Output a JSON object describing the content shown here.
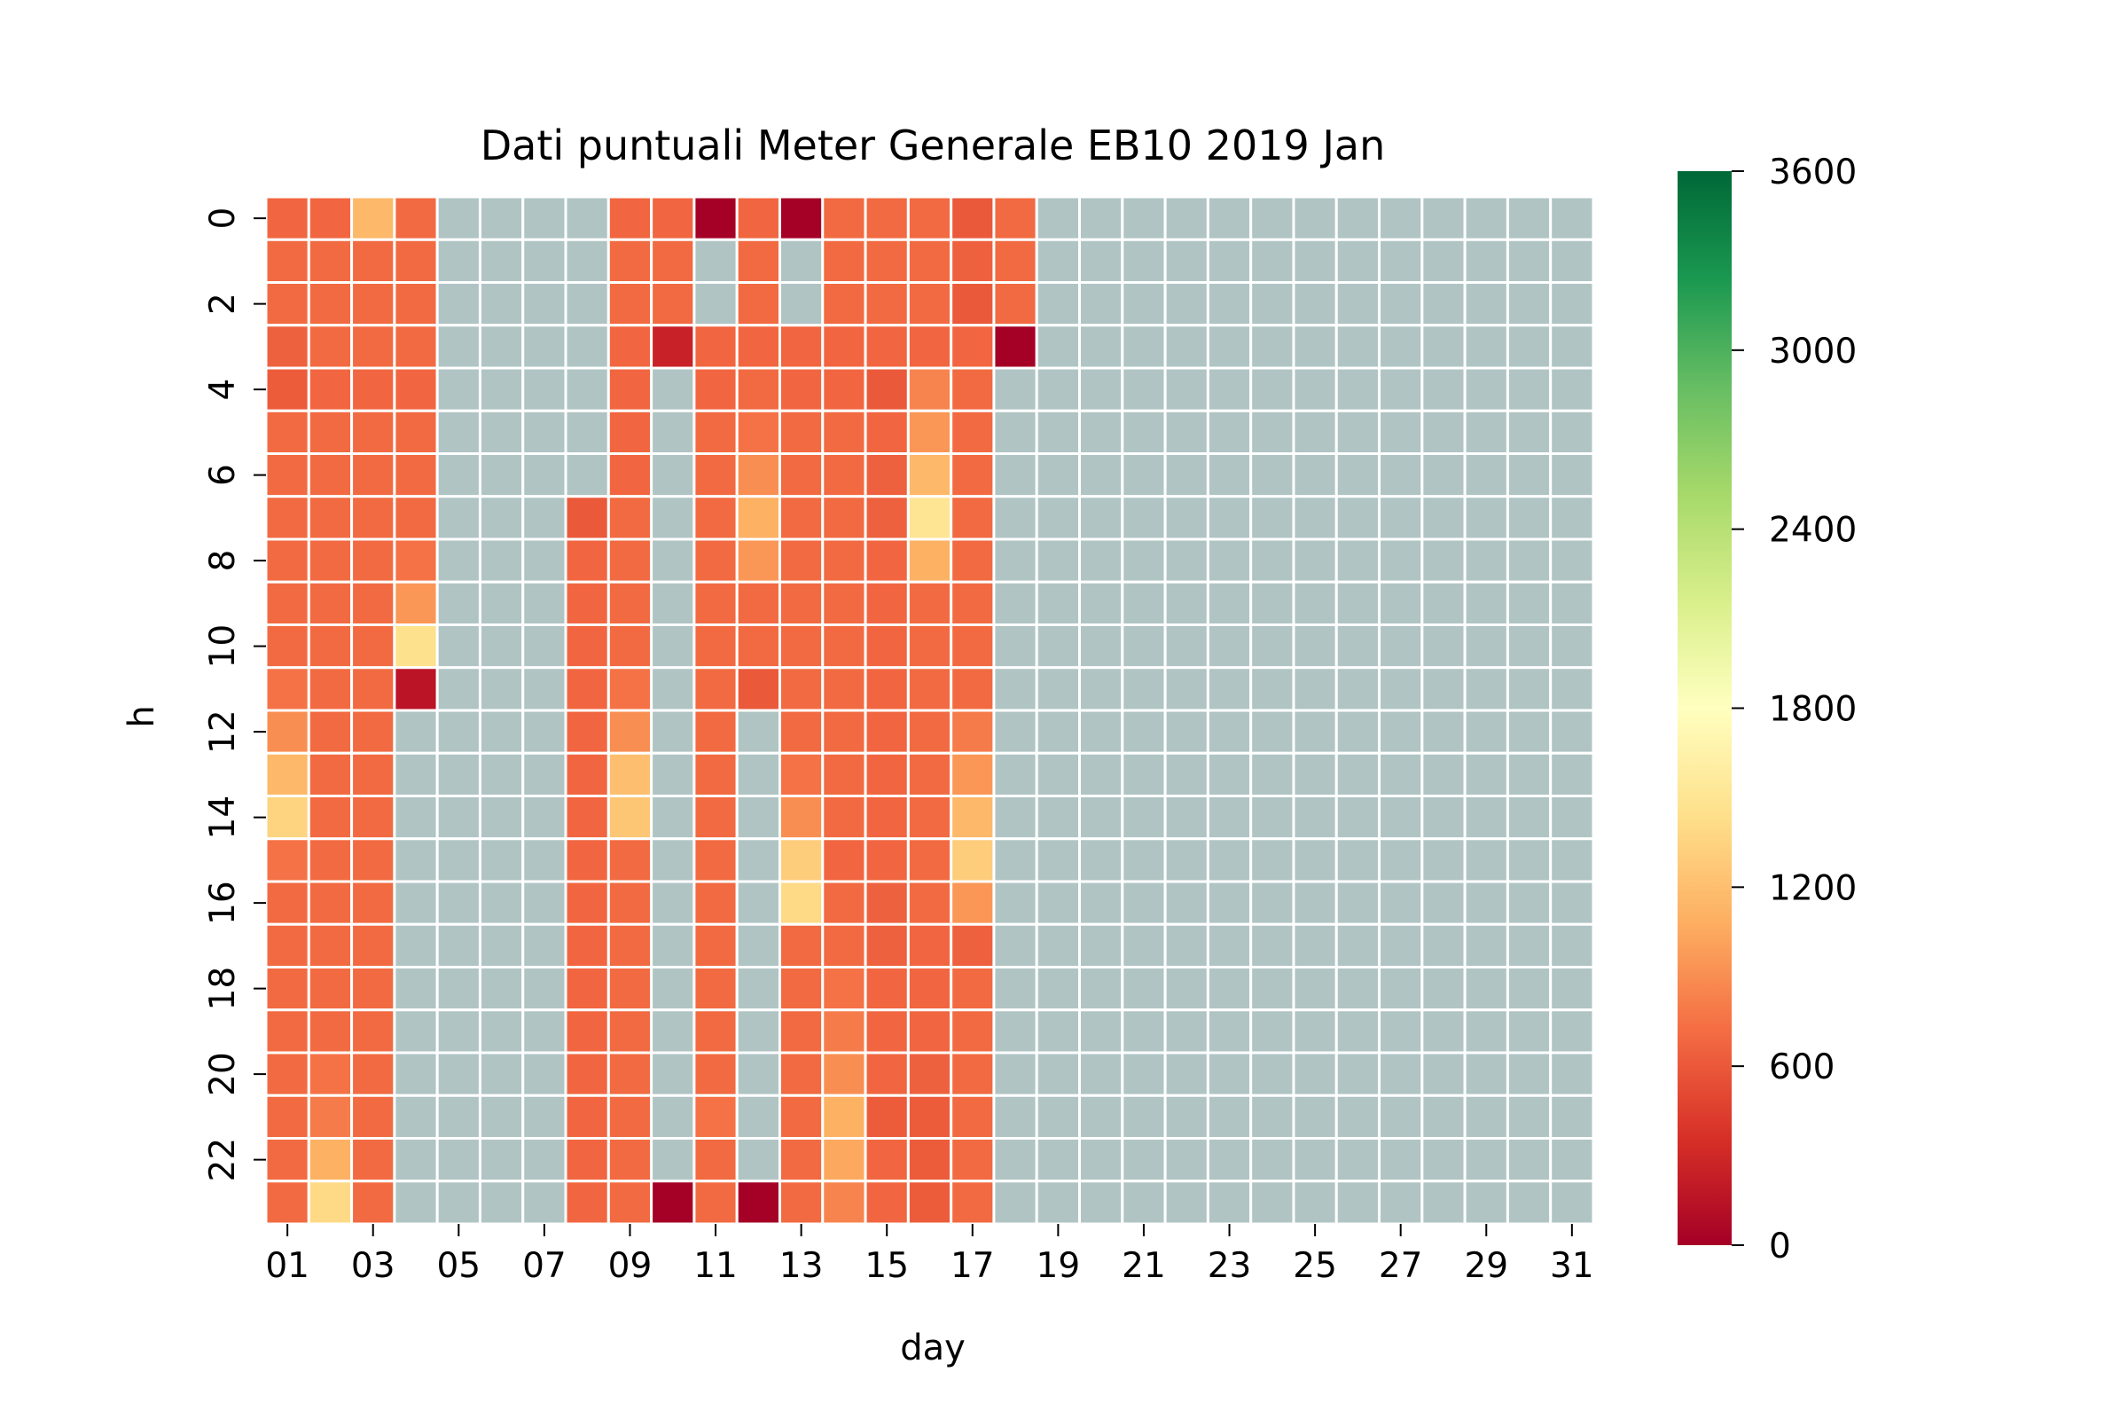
{
  "chart_data": {
    "type": "heatmap",
    "title": "Dati puntuali Meter Generale EB10 2019 Jan",
    "xlabel": "day",
    "ylabel": "h",
    "x_tick_labels": [
      "01",
      "03",
      "05",
      "07",
      "09",
      "11",
      "13",
      "15",
      "17",
      "19",
      "21",
      "23",
      "25",
      "27",
      "29",
      "31"
    ],
    "y_tick_labels": [
      "0",
      "2",
      "4",
      "6",
      "8",
      "10",
      "12",
      "14",
      "16",
      "18",
      "20",
      "22"
    ],
    "colorbar": {
      "cmap": "RdYlGn",
      "vmin": 0,
      "vmax": 3600,
      "ticks": [
        "0",
        "600",
        "1200",
        "1800",
        "2400",
        "3000",
        "3600"
      ]
    },
    "missing_color": "#b0c4c4",
    "days": [
      "01",
      "02",
      "03",
      "04",
      "05",
      "06",
      "07",
      "08",
      "09",
      "10",
      "11",
      "12",
      "13",
      "14",
      "15",
      "16",
      "17",
      "18",
      "19",
      "20",
      "21",
      "22",
      "23",
      "24",
      "25",
      "26",
      "27",
      "28",
      "29",
      "30",
      "31"
    ],
    "hours": [
      "0",
      "1",
      "2",
      "3",
      "4",
      "5",
      "6",
      "7",
      "8",
      "9",
      "10",
      "11",
      "12",
      "13",
      "14",
      "15",
      "16",
      "17",
      "18",
      "19",
      "20",
      "21",
      "22",
      "23"
    ],
    "values": [
      [
        680,
        680,
        1150,
        700,
        null,
        null,
        null,
        null,
        680,
        680,
        0,
        680,
        0,
        700,
        700,
        700,
        600,
        700,
        null,
        null,
        null,
        null,
        null,
        null,
        null,
        null,
        null,
        null,
        null,
        null,
        null
      ],
      [
        700,
        700,
        700,
        700,
        null,
        null,
        null,
        null,
        700,
        700,
        null,
        700,
        null,
        700,
        700,
        700,
        650,
        700,
        null,
        null,
        null,
        null,
        null,
        null,
        null,
        null,
        null,
        null,
        null,
        null,
        null
      ],
      [
        700,
        700,
        700,
        700,
        null,
        null,
        null,
        null,
        700,
        700,
        null,
        700,
        null,
        700,
        700,
        700,
        600,
        700,
        null,
        null,
        null,
        null,
        null,
        null,
        null,
        null,
        null,
        null,
        null,
        null,
        null
      ],
      [
        650,
        700,
        700,
        700,
        null,
        null,
        null,
        null,
        680,
        250,
        680,
        680,
        680,
        680,
        680,
        680,
        680,
        0,
        null,
        null,
        null,
        null,
        null,
        null,
        null,
        null,
        null,
        null,
        null,
        null,
        null
      ],
      [
        620,
        680,
        680,
        680,
        null,
        null,
        null,
        null,
        680,
        null,
        680,
        700,
        680,
        680,
        600,
        850,
        700,
        null,
        null,
        null,
        null,
        null,
        null,
        null,
        null,
        null,
        null,
        null,
        null,
        null,
        null
      ],
      [
        700,
        700,
        700,
        700,
        null,
        null,
        null,
        null,
        680,
        null,
        700,
        750,
        700,
        700,
        680,
        950,
        700,
        null,
        null,
        null,
        null,
        null,
        null,
        null,
        null,
        null,
        null,
        null,
        null,
        null,
        null
      ],
      [
        700,
        700,
        700,
        700,
        null,
        null,
        null,
        null,
        680,
        null,
        700,
        900,
        700,
        700,
        650,
        1150,
        700,
        null,
        null,
        null,
        null,
        null,
        null,
        null,
        null,
        null,
        null,
        null,
        null,
        null,
        null
      ],
      [
        700,
        700,
        700,
        700,
        null,
        null,
        null,
        600,
        700,
        null,
        700,
        1100,
        700,
        700,
        650,
        1500,
        700,
        null,
        null,
        null,
        null,
        null,
        null,
        null,
        null,
        null,
        null,
        null,
        null,
        null,
        null
      ],
      [
        700,
        700,
        700,
        750,
        null,
        null,
        null,
        680,
        700,
        null,
        700,
        950,
        700,
        700,
        680,
        1100,
        700,
        null,
        null,
        null,
        null,
        null,
        null,
        null,
        null,
        null,
        null,
        null,
        null,
        null,
        null
      ],
      [
        700,
        700,
        700,
        950,
        null,
        null,
        null,
        680,
        700,
        null,
        700,
        700,
        700,
        700,
        680,
        700,
        700,
        null,
        null,
        null,
        null,
        null,
        null,
        null,
        null,
        null,
        null,
        null,
        null,
        null,
        null
      ],
      [
        700,
        700,
        700,
        1450,
        null,
        null,
        null,
        680,
        700,
        null,
        700,
        700,
        700,
        700,
        680,
        700,
        700,
        null,
        null,
        null,
        null,
        null,
        null,
        null,
        null,
        null,
        null,
        null,
        null,
        null,
        null
      ],
      [
        750,
        700,
        700,
        150,
        null,
        null,
        null,
        680,
        750,
        null,
        700,
        600,
        700,
        700,
        680,
        700,
        700,
        null,
        null,
        null,
        null,
        null,
        null,
        null,
        null,
        null,
        null,
        null,
        null,
        null,
        null
      ],
      [
        900,
        700,
        700,
        null,
        null,
        null,
        null,
        680,
        900,
        null,
        700,
        null,
        700,
        700,
        680,
        700,
        800,
        null,
        null,
        null,
        null,
        null,
        null,
        null,
        null,
        null,
        null,
        null,
        null,
        null,
        null
      ],
      [
        1150,
        700,
        700,
        null,
        null,
        null,
        null,
        680,
        1200,
        null,
        700,
        null,
        750,
        700,
        680,
        700,
        950,
        null,
        null,
        null,
        null,
        null,
        null,
        null,
        null,
        null,
        null,
        null,
        null,
        null,
        null
      ],
      [
        1350,
        700,
        700,
        null,
        null,
        null,
        null,
        680,
        1250,
        null,
        700,
        null,
        900,
        700,
        680,
        700,
        1150,
        null,
        null,
        null,
        null,
        null,
        null,
        null,
        null,
        null,
        null,
        null,
        null,
        null,
        null
      ],
      [
        750,
        700,
        700,
        null,
        null,
        null,
        null,
        680,
        700,
        null,
        700,
        null,
        1300,
        680,
        680,
        700,
        1300,
        null,
        null,
        null,
        null,
        null,
        null,
        null,
        null,
        null,
        null,
        null,
        null,
        null,
        null
      ],
      [
        700,
        700,
        700,
        null,
        null,
        null,
        null,
        680,
        700,
        null,
        700,
        null,
        1400,
        700,
        650,
        700,
        950,
        null,
        null,
        null,
        null,
        null,
        null,
        null,
        null,
        null,
        null,
        null,
        null,
        null,
        null
      ],
      [
        700,
        700,
        700,
        null,
        null,
        null,
        null,
        680,
        700,
        null,
        700,
        null,
        700,
        700,
        650,
        680,
        650,
        null,
        null,
        null,
        null,
        null,
        null,
        null,
        null,
        null,
        null,
        null,
        null,
        null,
        null
      ],
      [
        700,
        700,
        700,
        null,
        null,
        null,
        null,
        680,
        700,
        null,
        700,
        null,
        700,
        750,
        680,
        680,
        700,
        null,
        null,
        null,
        null,
        null,
        null,
        null,
        null,
        null,
        null,
        null,
        null,
        null,
        null
      ],
      [
        700,
        700,
        700,
        null,
        null,
        null,
        null,
        680,
        700,
        null,
        700,
        null,
        700,
        800,
        680,
        680,
        700,
        null,
        null,
        null,
        null,
        null,
        null,
        null,
        null,
        null,
        null,
        null,
        null,
        null,
        null
      ],
      [
        700,
        750,
        700,
        null,
        null,
        null,
        null,
        680,
        700,
        null,
        700,
        null,
        700,
        900,
        680,
        650,
        700,
        null,
        null,
        null,
        null,
        null,
        null,
        null,
        null,
        null,
        null,
        null,
        null,
        null,
        null
      ],
      [
        700,
        800,
        700,
        null,
        null,
        null,
        null,
        680,
        700,
        null,
        750,
        null,
        700,
        1100,
        620,
        620,
        700,
        null,
        null,
        null,
        null,
        null,
        null,
        null,
        null,
        null,
        null,
        null,
        null,
        null,
        null
      ],
      [
        700,
        1100,
        700,
        null,
        null,
        null,
        null,
        680,
        700,
        null,
        700,
        null,
        700,
        1050,
        680,
        620,
        700,
        null,
        null,
        null,
        null,
        null,
        null,
        null,
        null,
        null,
        null,
        null,
        null,
        null,
        null
      ],
      [
        700,
        1400,
        700,
        null,
        null,
        null,
        null,
        680,
        700,
        0,
        700,
        0,
        700,
        850,
        680,
        620,
        700,
        null,
        null,
        null,
        null,
        null,
        null,
        null,
        null,
        null,
        null,
        null,
        null,
        null,
        null
      ]
    ]
  }
}
